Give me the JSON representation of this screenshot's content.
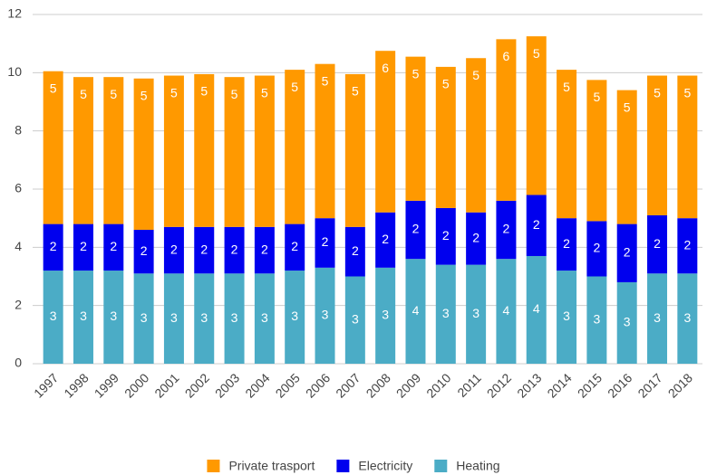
{
  "chart_data": {
    "type": "stacked_bar",
    "categories": [
      "1997",
      "1998",
      "1999",
      "2000",
      "2001",
      "2002",
      "2003",
      "2004",
      "2005",
      "2006",
      "2007",
      "2008",
      "2009",
      "2010",
      "2011",
      "2012",
      "2013",
      "2014",
      "2015",
      "2016",
      "2017",
      "2018"
    ],
    "series": [
      {
        "name": "Heating",
        "color": "#4bacc6",
        "values": [
          3.2,
          3.2,
          3.2,
          3.1,
          3.1,
          3.1,
          3.1,
          3.1,
          3.2,
          3.3,
          3.0,
          3.3,
          3.6,
          3.4,
          3.4,
          3.6,
          3.7,
          3.2,
          3.0,
          2.8,
          3.1,
          3.1
        ],
        "value_labels": [
          "3",
          "3",
          "3",
          "3",
          "3",
          "3",
          "3",
          "3",
          "3",
          "3",
          "3",
          "3",
          "4",
          "3",
          "3",
          "4",
          "4",
          "3",
          "3",
          "3",
          "3",
          "3"
        ]
      },
      {
        "name": "Electricity",
        "color": "#0000ee",
        "values": [
          1.6,
          1.6,
          1.6,
          1.5,
          1.6,
          1.6,
          1.6,
          1.6,
          1.6,
          1.7,
          1.7,
          1.9,
          2.0,
          1.95,
          1.8,
          2.0,
          2.1,
          1.8,
          1.9,
          2.0,
          2.0,
          1.9
        ],
        "value_labels": [
          "2",
          "2",
          "2",
          "2",
          "2",
          "2",
          "2",
          "2",
          "2",
          "2",
          "2",
          "2",
          "2",
          "2",
          "2",
          "2",
          "2",
          "2",
          "2",
          "2",
          "2",
          "2"
        ]
      },
      {
        "name": "Private trasport",
        "color": "#ff9900",
        "values": [
          5.25,
          5.05,
          5.05,
          5.2,
          5.2,
          5.25,
          5.15,
          5.2,
          5.3,
          5.3,
          5.25,
          5.55,
          4.95,
          4.85,
          5.3,
          5.55,
          5.45,
          5.1,
          4.85,
          4.6,
          4.8,
          4.9
        ],
        "value_labels": [
          "5",
          "5",
          "5",
          "5",
          "5",
          "5",
          "5",
          "5",
          "5",
          "5",
          "5",
          "6",
          "5",
          "5",
          "5",
          "6",
          "5",
          "5",
          "5",
          "5",
          "5",
          "5"
        ]
      }
    ],
    "ylim": [
      0,
      12
    ],
    "yticks": [
      0,
      2,
      4,
      6,
      8,
      10,
      12
    ],
    "grid": true,
    "legend": "bottom"
  }
}
